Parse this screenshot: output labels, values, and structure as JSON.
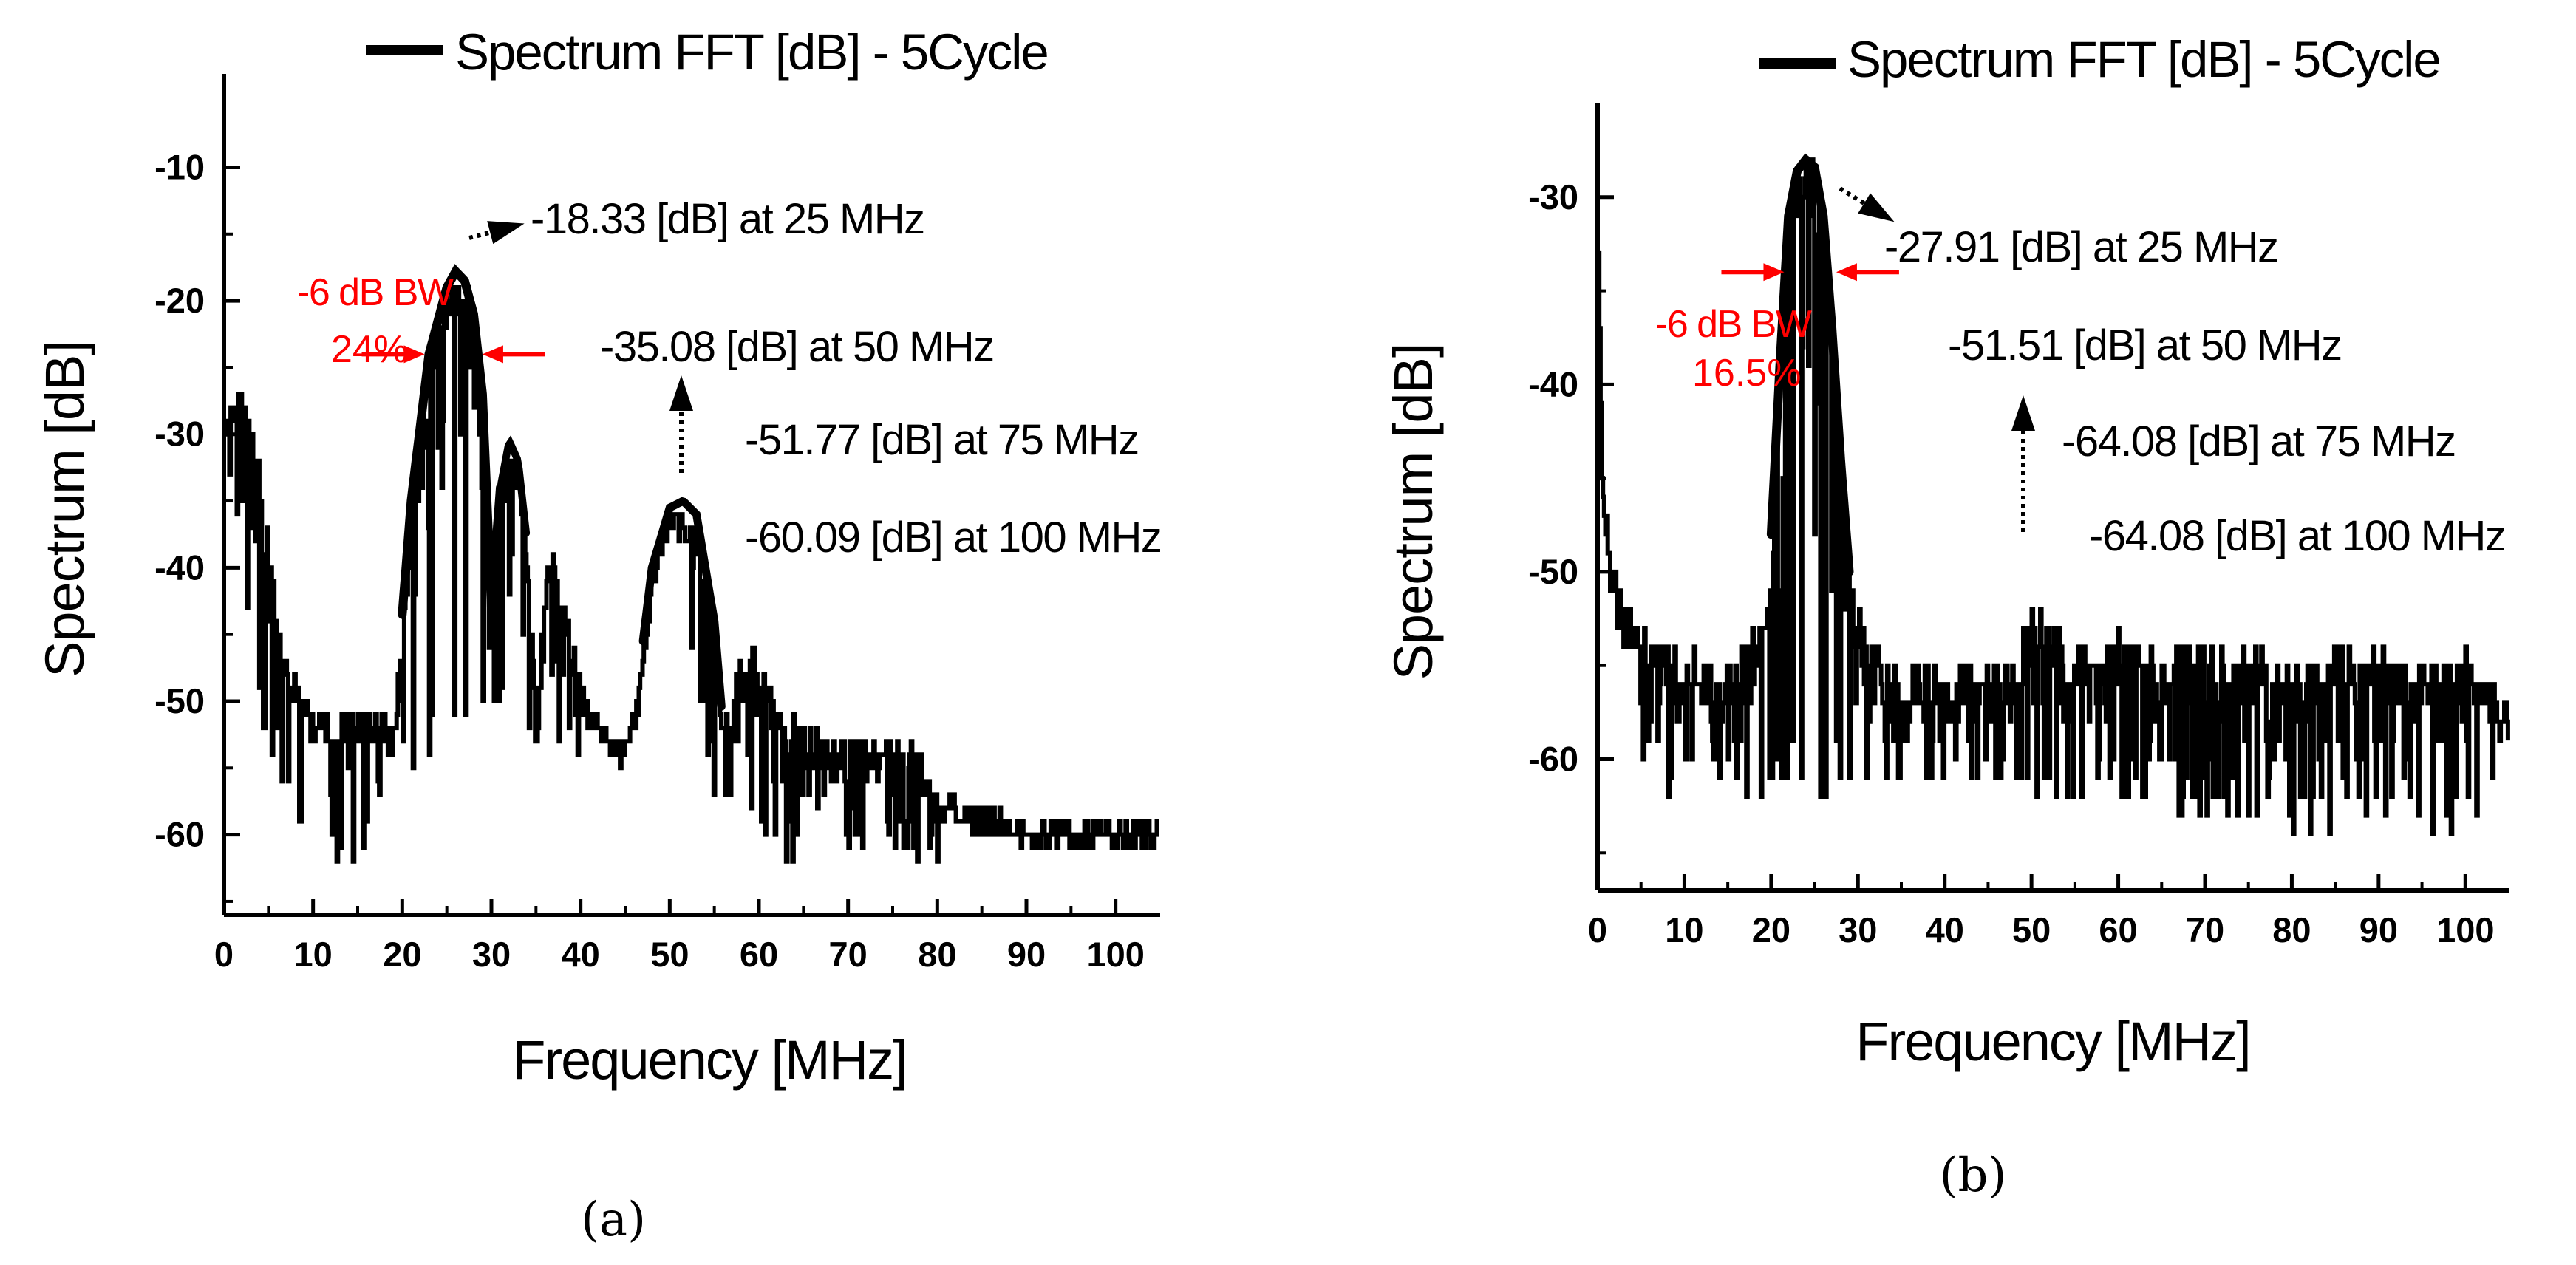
{
  "chart_data": [
    {
      "type": "line",
      "panel_label": "(a)",
      "legend": "Spectrum FFT [dB] - 5Cycle",
      "xlabel": "Frequency [MHz]",
      "ylabel": "Spectrum [dB]",
      "xlim": [
        0,
        105
      ],
      "ylim": [
        -66,
        -3
      ],
      "xticks": [
        0,
        10,
        20,
        30,
        40,
        50,
        60,
        70,
        80,
        90,
        100
      ],
      "yticks": [
        -10,
        -20,
        -30,
        -40,
        -50,
        -60
      ],
      "grid": false,
      "colors": {
        "line": "#000000",
        "bandwidth": "#ff0000"
      },
      "bandwidth": {
        "label": "-6 dB BW",
        "value": "24%",
        "left_mhz": 22.5,
        "right_mhz": 29.0,
        "level_db": -24
      },
      "annotations": [
        {
          "text": "-18.33 [dB] at 25 MHz",
          "x": 25.5,
          "y": -18.33
        },
        {
          "text": "-35.08 [dB] at 50 MHz",
          "x": 51.5,
          "y": -35.08
        },
        {
          "text": "-51.77 [dB] at 75 MHz"
        },
        {
          "text": "-60.09 [dB] at 100 MHz"
        }
      ],
      "envelope": {
        "x": [
          0,
          1,
          3,
          5,
          6,
          8,
          10,
          13,
          16,
          19,
          21,
          23,
          25,
          26,
          27,
          28,
          29,
          30,
          31,
          32,
          33,
          34,
          35,
          36,
          37,
          38,
          40,
          42,
          44,
          46,
          48,
          50,
          51.5,
          53,
          55,
          56,
          57,
          58,
          59,
          62,
          65,
          70,
          75,
          78,
          80,
          85,
          90,
          95,
          100,
          105
        ],
        "y": [
          -30,
          -26,
          -29,
          -36,
          -45,
          -48,
          -50,
          -51,
          -50,
          -52,
          -35,
          -24,
          -19,
          -17.8,
          -18.5,
          -21,
          -27,
          -43,
          -34,
          -30.5,
          -32,
          -38,
          -52,
          -40,
          -38,
          -42,
          -48,
          -51,
          -53,
          -51,
          -40,
          -35.5,
          -35,
          -36,
          -44,
          -52,
          -50,
          -46,
          -45,
          -50,
          -52,
          -53,
          -52,
          -53,
          -57,
          -58,
          -59,
          -59,
          -59,
          -59
        ]
      },
      "noise_floor": {
        "x": [
          0,
          5,
          10,
          15,
          20,
          30,
          40,
          45,
          50,
          55,
          60,
          65,
          70,
          75,
          80,
          85,
          90,
          95,
          100,
          105
        ],
        "y": [
          -31,
          -56,
          -61,
          -62,
          -56,
          -50,
          -56,
          -52,
          -37,
          -58,
          -60,
          -63,
          -62,
          -61,
          -63,
          -63,
          -64,
          -64,
          -64,
          -64
        ]
      }
    },
    {
      "type": "line",
      "panel_label": "(b)",
      "legend": "Spectrum FFT [dB] - 5Cycle",
      "xlabel": "Frequency [MHz]",
      "ylabel": "Spectrum [dB]",
      "xlim": [
        0,
        105
      ],
      "ylim": [
        -67,
        -25
      ],
      "xticks": [
        0,
        10,
        20,
        30,
        40,
        50,
        60,
        70,
        80,
        90,
        100
      ],
      "yticks": [
        -30,
        -40,
        -50,
        -60
      ],
      "grid": false,
      "colors": {
        "line": "#000000",
        "bandwidth": "#ff0000"
      },
      "bandwidth": {
        "label": "-6 dB BW",
        "value": "16.5%",
        "left_mhz": 21.5,
        "right_mhz": 27.5,
        "level_db": -34
      },
      "annotations": [
        {
          "text": "-27.91 [dB] at 25 MHz",
          "x": 24.5,
          "y": -27.91
        },
        {
          "text": "-51.51 [dB] at 50 MHz",
          "x": 48.5,
          "y": -51.51
        },
        {
          "text": "-64.08 [dB] at 75 MHz"
        },
        {
          "text": "-64.08 [dB] at 100 MHz"
        }
      ],
      "envelope": {
        "x": [
          0,
          0.5,
          1.5,
          3,
          6,
          10,
          14,
          17,
          19,
          20,
          21,
          22,
          23,
          24,
          25,
          26,
          27,
          28,
          29,
          30,
          32,
          35,
          40,
          45,
          48,
          50,
          53,
          57,
          60,
          65,
          70,
          75,
          80,
          85,
          90,
          95,
          100,
          105
        ],
        "y": [
          -30,
          -45,
          -49,
          -52,
          -53,
          -54,
          -55,
          -54,
          -52,
          -48,
          -39,
          -31,
          -28.6,
          -28,
          -28.4,
          -31,
          -37,
          -44,
          -50,
          -52,
          -54,
          -55,
          -55,
          -55,
          -55,
          -51,
          -53,
          -54,
          -53,
          -54,
          -54,
          -54,
          -55,
          -54,
          -54,
          -55,
          -54,
          -57
        ]
      },
      "noise_floor": {
        "x": [
          0,
          5,
          10,
          20,
          30,
          40,
          50,
          60,
          70,
          80,
          90,
          100,
          105
        ],
        "y": [
          -32,
          -61,
          -62,
          -62,
          -62,
          -61,
          -62,
          -63,
          -63,
          -64,
          -64,
          -64,
          -62
        ]
      }
    }
  ]
}
